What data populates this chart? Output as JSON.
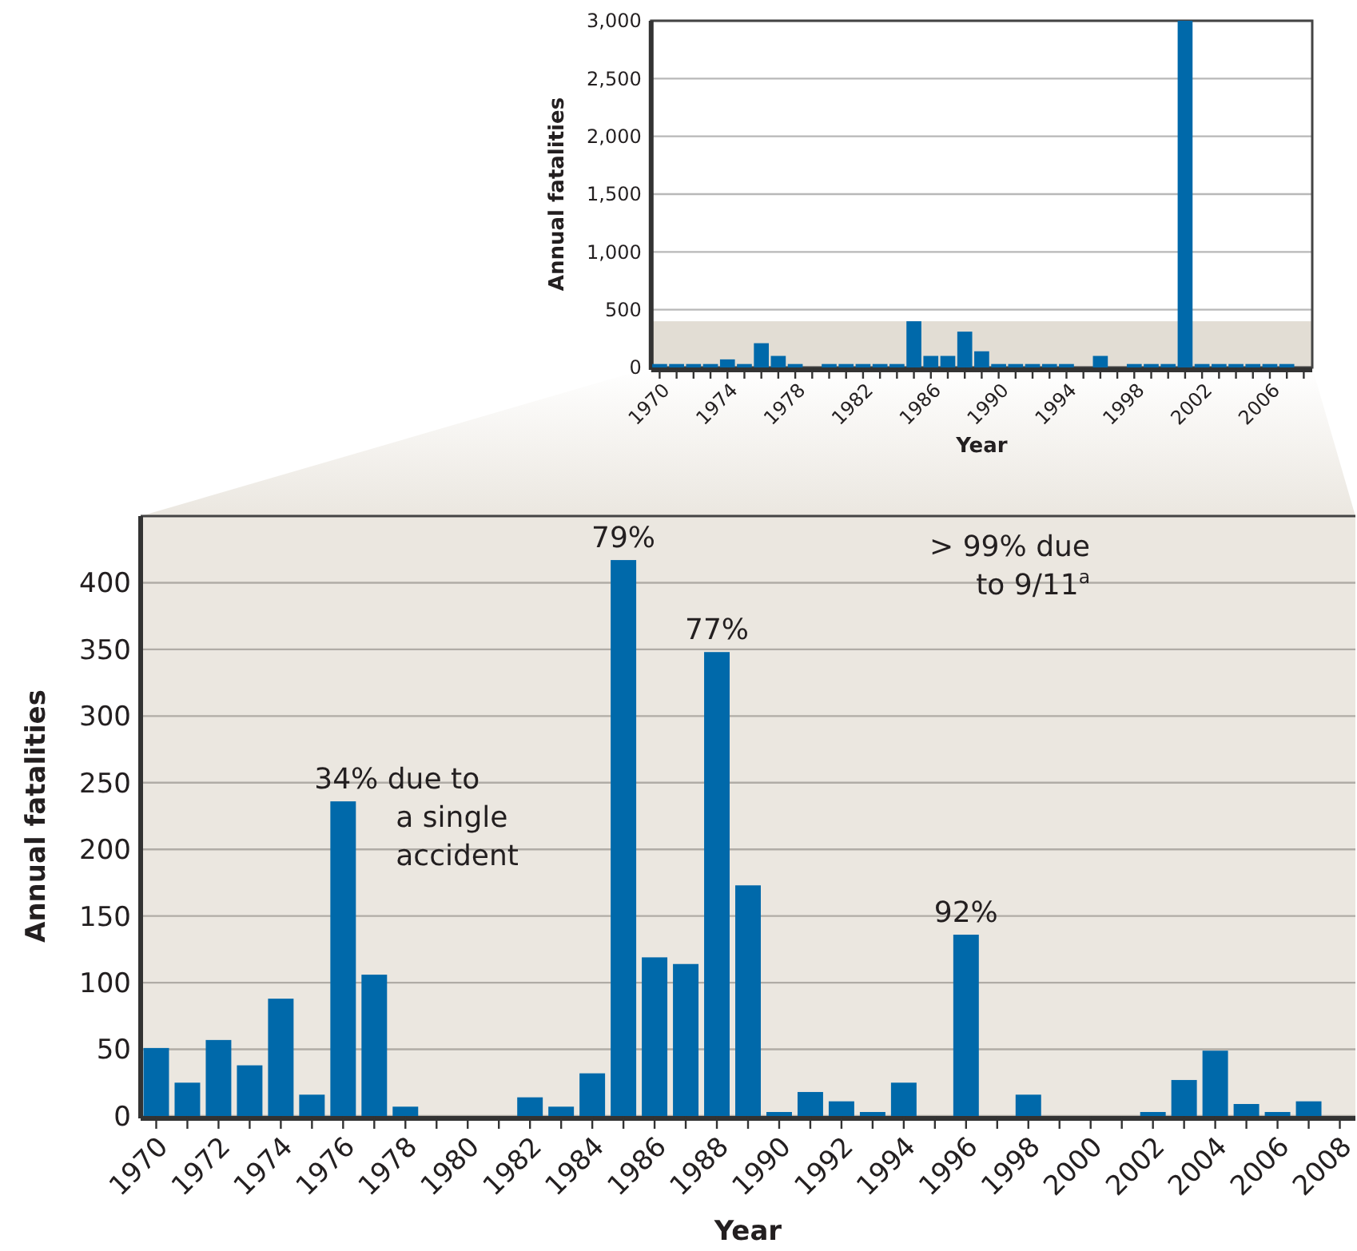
{
  "chart_data": [
    {
      "type": "bar",
      "xlabel": "Year",
      "ylabel": "Annual fatalities",
      "categories": [
        "1970",
        null,
        null,
        null,
        "1974",
        null,
        null,
        null,
        "1978",
        null,
        null,
        null,
        "1982",
        null,
        null,
        null,
        "1986",
        null,
        null,
        null,
        "1990",
        null,
        null,
        null,
        "1994",
        null,
        null,
        null,
        "1998",
        null,
        null,
        null,
        "2002",
        null,
        null,
        null,
        "2006",
        null,
        null
      ],
      "values": [
        30,
        30,
        30,
        30,
        70,
        30,
        210,
        100,
        30,
        null,
        30,
        30,
        30,
        30,
        30,
        400,
        100,
        100,
        310,
        140,
        30,
        30,
        30,
        30,
        30,
        null,
        100,
        null,
        30,
        30,
        30,
        3000,
        30,
        30,
        30,
        30,
        30,
        30,
        null
      ],
      "color": "#0069aa",
      "ylim": [
        0,
        3000
      ],
      "yticks": [
        0,
        500,
        {
          "value": 1000,
          "label": "1,000"
        },
        {
          "value": 1500,
          "label": "1,500"
        },
        {
          "value": 2000,
          "label": "2,000"
        },
        {
          "value": 2500,
          "label": "2,500"
        },
        {
          "value": 3000,
          "label": "3,000"
        }
      ],
      "bands": [
        {
          "axis": "y",
          "from": 0,
          "to": 400,
          "color": "#e2ddd4"
        }
      ],
      "grid": "y"
    },
    {
      "type": "bar",
      "xlabel": "Year",
      "ylabel": "Annual fatalities",
      "categories": [
        "1970",
        null,
        "1972",
        null,
        "1974",
        null,
        "1976",
        null,
        "1978",
        null,
        "1980",
        null,
        "1982",
        null,
        "1984",
        null,
        "1986",
        null,
        "1988",
        null,
        "1990",
        null,
        "1992",
        null,
        "1994",
        null,
        "1996",
        null,
        "1998",
        null,
        "2000",
        null,
        "2002",
        null,
        "2004",
        null,
        "2006",
        null,
        "2008"
      ],
      "values": [
        51,
        25,
        57,
        38,
        88,
        16,
        236,
        106,
        7,
        0,
        0,
        0,
        14,
        7,
        32,
        417,
        119,
        114,
        348,
        173,
        3,
        18,
        11,
        3,
        25,
        0,
        136,
        0,
        16,
        0,
        0,
        null,
        3,
        27,
        49,
        9,
        3,
        11,
        null
      ],
      "color": "#0069aa",
      "ylim": [
        0,
        450
      ],
      "yticks": [
        0,
        50,
        100,
        150,
        200,
        250,
        300,
        350,
        400
      ],
      "grid": "y",
      "annotations": [
        {
          "text": "34% due to\na single\naccident",
          "x": "1976",
          "y": 236
        },
        {
          "text": "79%",
          "y": 417
        },
        {
          "text": "77%",
          "x": "1988",
          "y": 348
        },
        {
          "text": "92%",
          "x": "1996",
          "y": 136
        },
        "> 99% due\nto 9/11$^{a}$"
      ]
    }
  ]
}
